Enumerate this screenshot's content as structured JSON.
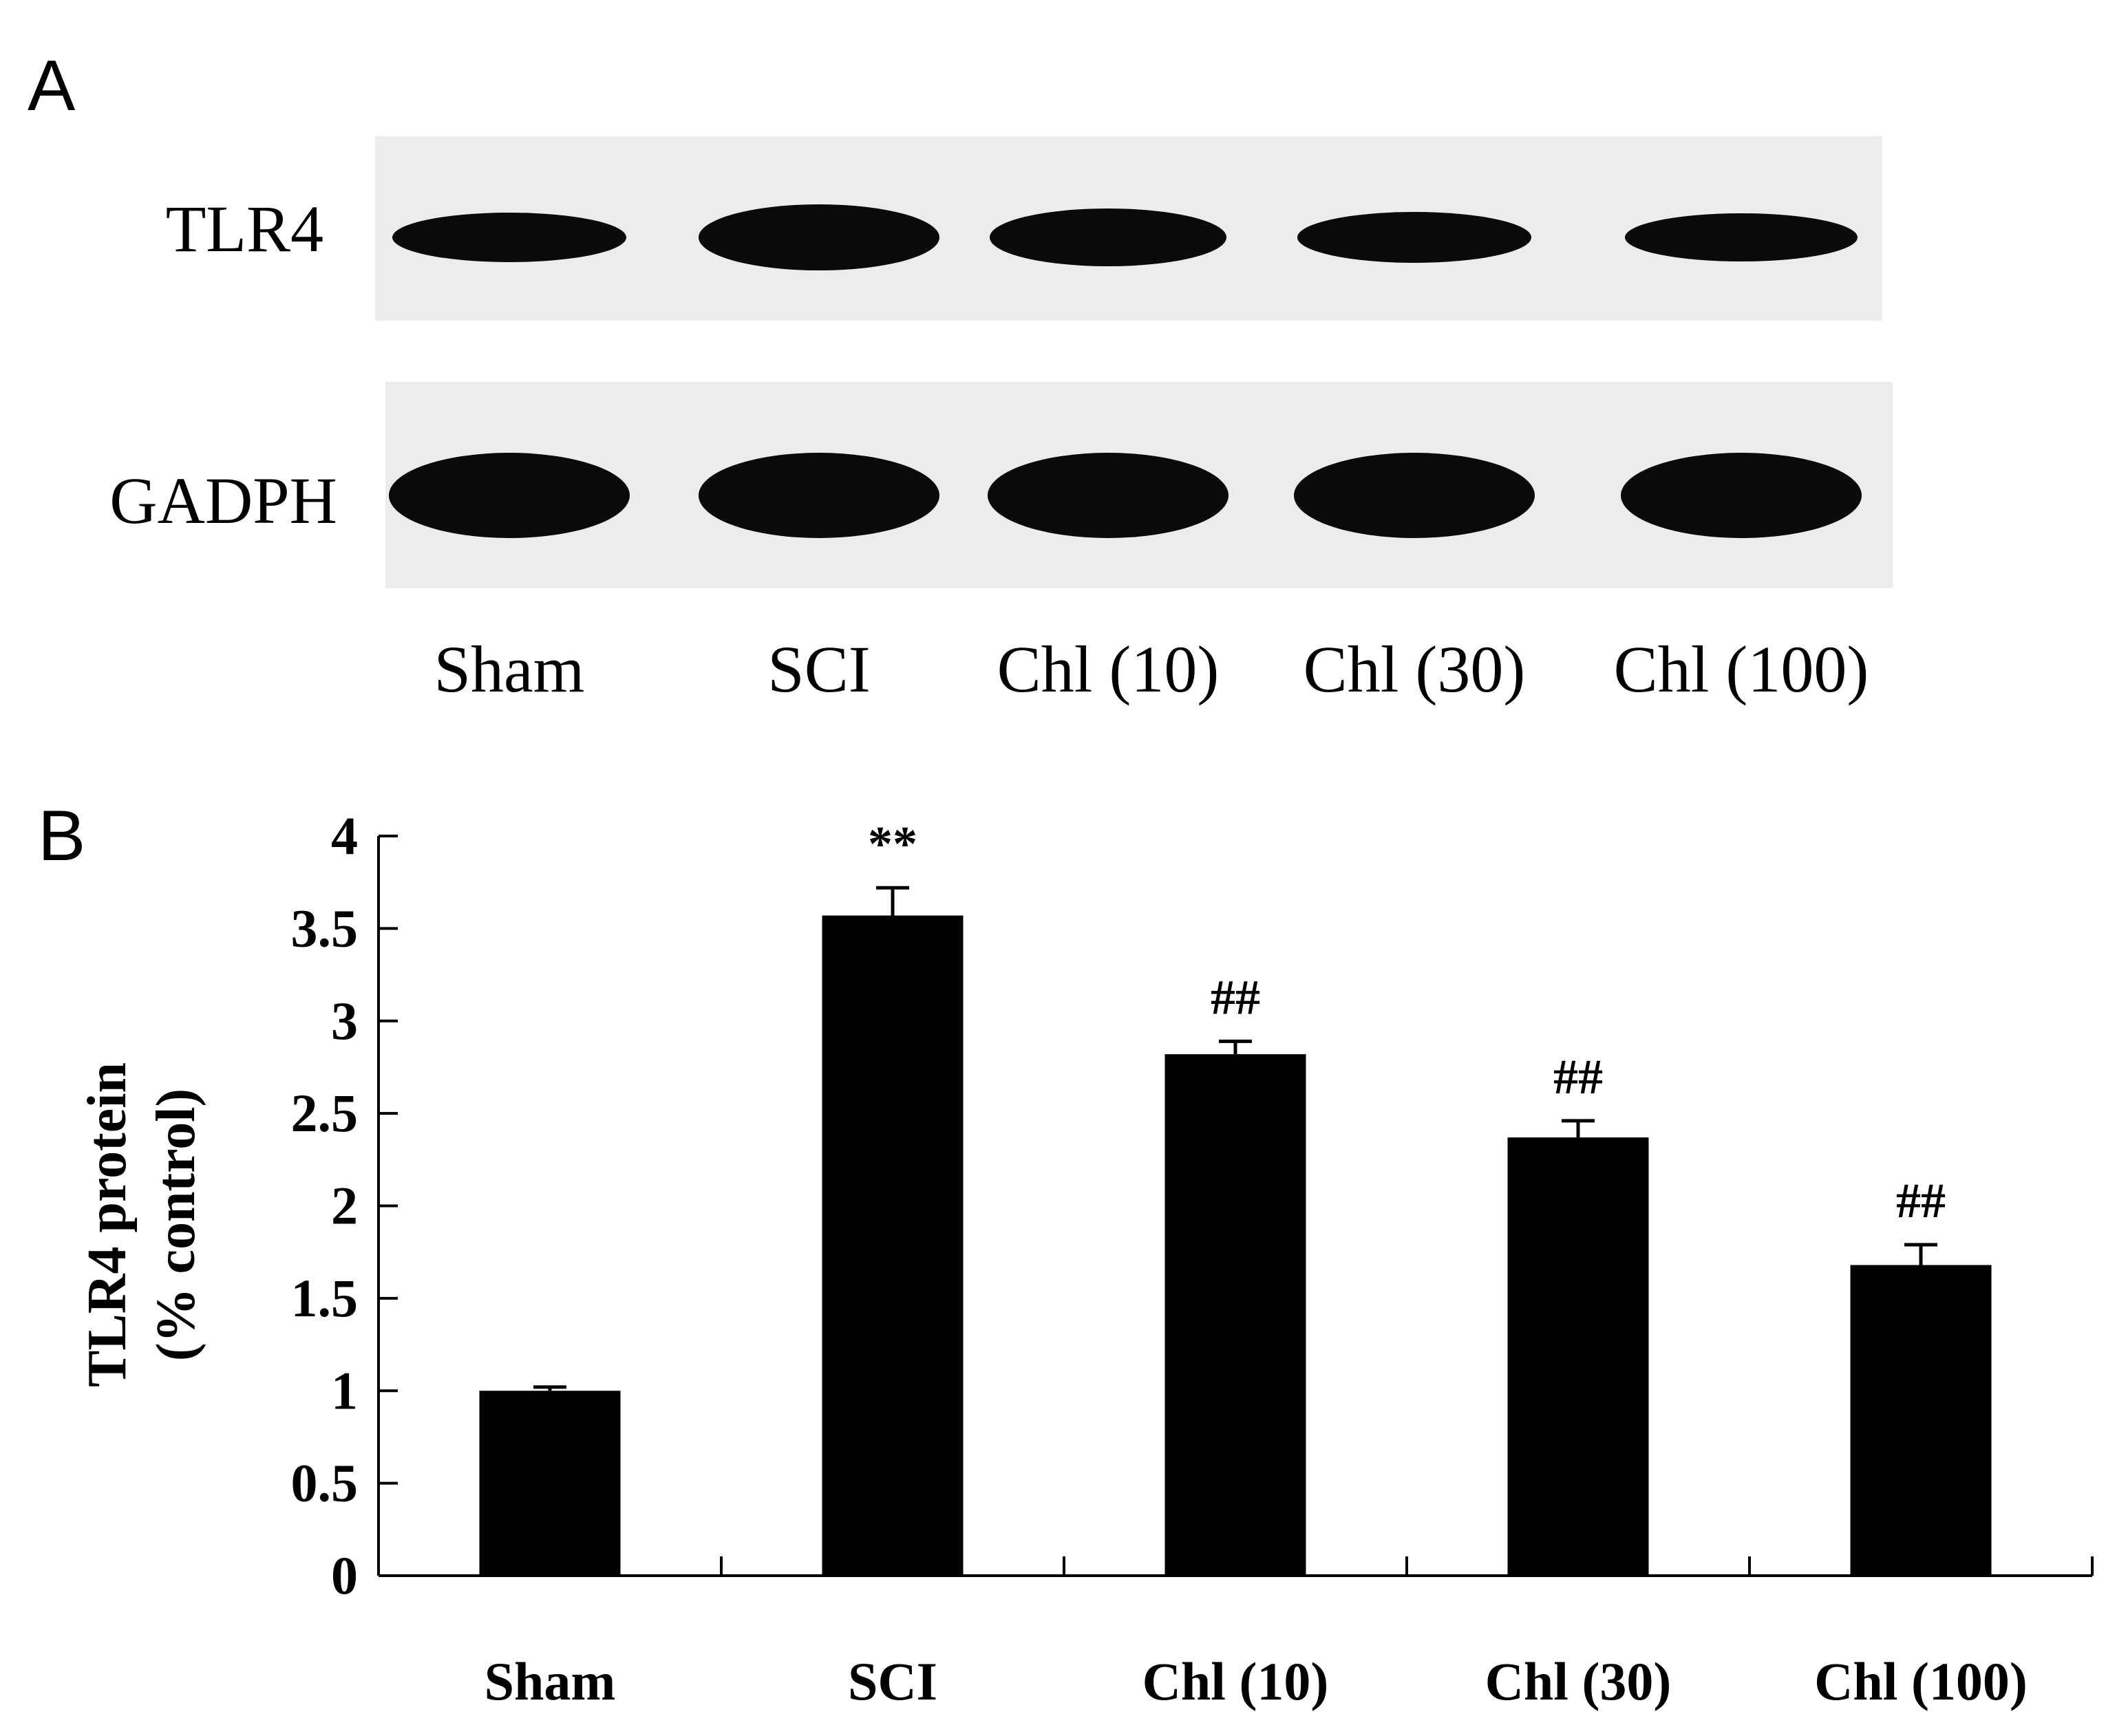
{
  "panel_a": {
    "letter": "A",
    "rows": [
      {
        "label": "TLR4",
        "intensity": [
          0.75,
          1.0,
          0.88,
          0.78,
          0.72
        ]
      },
      {
        "label": "GADPH",
        "intensity": [
          1.0,
          1.0,
          1.0,
          1.0,
          1.0
        ]
      }
    ],
    "lane_labels": [
      "Sham",
      "SCI",
      "Chl (10)",
      "Chl (30)",
      "Chl (100)"
    ]
  },
  "panel_b": {
    "letter": "B"
  },
  "chart_data": {
    "type": "bar",
    "categories": [
      "Sham",
      "SCI",
      "Chl (10)",
      "Chl (30)",
      "Chl (100)"
    ],
    "values": [
      1.0,
      3.57,
      2.82,
      2.37,
      1.68
    ],
    "errors": [
      0.02,
      0.15,
      0.07,
      0.09,
      0.11
    ],
    "annotations": [
      "",
      "**",
      "##",
      "##",
      "##"
    ],
    "ylabel_lines": [
      "TLR4 protein",
      "(% control)"
    ],
    "xlabel": "",
    "ylim": [
      0,
      4
    ],
    "yticks": [
      "0",
      "0.5",
      "1",
      "1.5",
      "2",
      "2.5",
      "3",
      "3.5",
      "4"
    ],
    "bar_color": "#000000",
    "grid": false
  }
}
